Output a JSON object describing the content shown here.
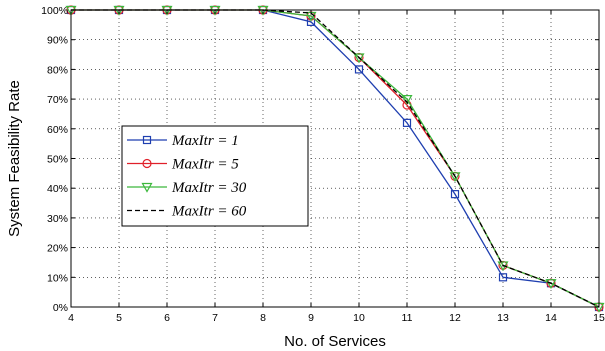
{
  "chart_data": {
    "type": "line",
    "xlabel": "No. of Services",
    "ylabel": "System Feasibility Rate",
    "xlim": [
      4,
      15
    ],
    "ylim": [
      0,
      100
    ],
    "x_ticks": [
      4,
      5,
      6,
      7,
      8,
      9,
      10,
      11,
      12,
      13,
      14,
      15
    ],
    "y_ticks": [
      0,
      10,
      20,
      30,
      40,
      50,
      60,
      70,
      80,
      90,
      100
    ],
    "y_tick_labels": [
      "0%",
      "10%",
      "20%",
      "30%",
      "40%",
      "50%",
      "60%",
      "70%",
      "80%",
      "90%",
      "100%"
    ],
    "grid": true,
    "legend_position": "center-left",
    "x": [
      4,
      5,
      6,
      7,
      8,
      9,
      10,
      11,
      12,
      13,
      14,
      15
    ],
    "series": [
      {
        "name": "MaxItr = 1",
        "color": "#1f3fb0",
        "marker": "square",
        "dash": "solid",
        "values": [
          100,
          100,
          100,
          100,
          100,
          96,
          80,
          62,
          38,
          10,
          8,
          0
        ]
      },
      {
        "name": "MaxItr = 5",
        "color": "#e0202a",
        "marker": "circle",
        "dash": "solid",
        "values": [
          100,
          100,
          100,
          100,
          100,
          98,
          84,
          68,
          44,
          14,
          8,
          0
        ]
      },
      {
        "name": "MaxItr = 30",
        "color": "#3cb83c",
        "marker": "triangle-down",
        "dash": "solid",
        "values": [
          100,
          100,
          100,
          100,
          100,
          98,
          84,
          70,
          44,
          14,
          8,
          0
        ]
      },
      {
        "name": "MaxItr = 60",
        "color": "#000000",
        "marker": "none",
        "dash": "dashed",
        "values": [
          100,
          100,
          100,
          100,
          100,
          99,
          84,
          69,
          44,
          14,
          8,
          0
        ]
      }
    ]
  }
}
